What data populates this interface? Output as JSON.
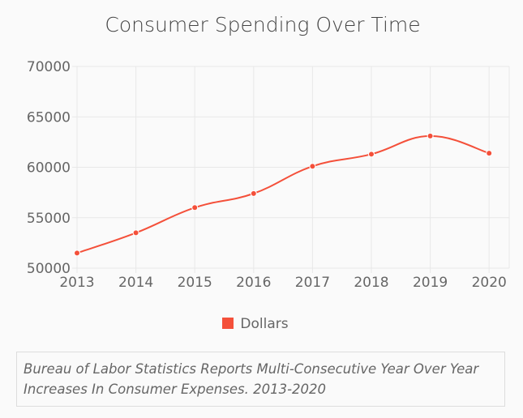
{
  "chart_data": {
    "type": "line",
    "title": "Consumer Spending Over Time",
    "categories": [
      "2013",
      "2014",
      "2015",
      "2016",
      "2017",
      "2018",
      "2019",
      "2020"
    ],
    "series": [
      {
        "name": "Dollars",
        "values": [
          51500,
          53500,
          56000,
          57400,
          60100,
          61300,
          63100,
          61400
        ],
        "color": "#f4503a"
      }
    ],
    "ylim": [
      50000,
      70000
    ],
    "yticks": [
      50000,
      55000,
      60000,
      65000,
      70000
    ],
    "grid": true,
    "legend": "bottom",
    "smooth": true
  },
  "caption": "Bureau of Labor Statistics Reports Multi-Consecutive Year Over Year Increases In Consumer Expenses. 2013-2020"
}
